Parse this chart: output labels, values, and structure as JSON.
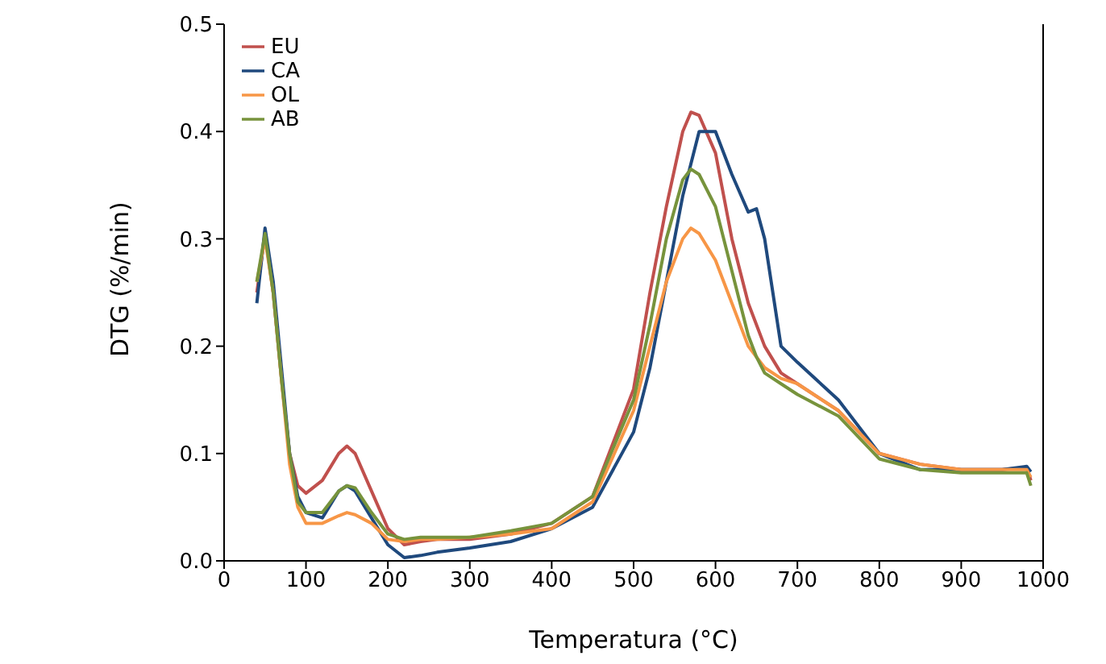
{
  "chart_data": {
    "type": "line",
    "xlabel": "Temperatura (°C)",
    "ylabel": "DTG (%/min)",
    "x": [
      40,
      50,
      60,
      70,
      80,
      90,
      100,
      120,
      140,
      150,
      160,
      180,
      200,
      220,
      240,
      260,
      300,
      350,
      400,
      450,
      500,
      520,
      540,
      560,
      570,
      580,
      600,
      620,
      640,
      650,
      660,
      680,
      700,
      750,
      800,
      850,
      900,
      950,
      980,
      985
    ],
    "series": [
      {
        "name": "EU",
        "color": "#c0504d",
        "values": [
          0.25,
          0.305,
          0.25,
          0.17,
          0.1,
          0.07,
          0.063,
          0.075,
          0.1,
          0.107,
          0.1,
          0.065,
          0.03,
          0.015,
          0.018,
          0.02,
          0.02,
          0.025,
          0.035,
          0.06,
          0.16,
          0.25,
          0.33,
          0.4,
          0.418,
          0.415,
          0.38,
          0.3,
          0.24,
          0.22,
          0.2,
          0.175,
          0.165,
          0.14,
          0.1,
          0.09,
          0.085,
          0.085,
          0.087,
          0.075
        ]
      },
      {
        "name": "CA",
        "color": "#1f497d",
        "values": [
          0.24,
          0.31,
          0.26,
          0.18,
          0.1,
          0.06,
          0.045,
          0.04,
          0.065,
          0.07,
          0.065,
          0.04,
          0.015,
          0.003,
          0.005,
          0.008,
          0.012,
          0.018,
          0.03,
          0.05,
          0.12,
          0.18,
          0.26,
          0.34,
          0.37,
          0.4,
          0.4,
          0.36,
          0.325,
          0.328,
          0.3,
          0.2,
          0.185,
          0.15,
          0.1,
          0.085,
          0.085,
          0.085,
          0.088,
          0.083
        ]
      },
      {
        "name": "OL",
        "color": "#f79646",
        "values": [
          0.26,
          0.3,
          0.25,
          0.17,
          0.09,
          0.05,
          0.035,
          0.035,
          0.042,
          0.045,
          0.043,
          0.035,
          0.02,
          0.018,
          0.02,
          0.02,
          0.022,
          0.025,
          0.03,
          0.055,
          0.14,
          0.2,
          0.26,
          0.3,
          0.31,
          0.305,
          0.28,
          0.24,
          0.2,
          0.19,
          0.18,
          0.17,
          0.165,
          0.14,
          0.1,
          0.09,
          0.085,
          0.085,
          0.085,
          0.078
        ]
      },
      {
        "name": "AB",
        "color": "#77933c",
        "values": [
          0.26,
          0.305,
          0.25,
          0.17,
          0.1,
          0.055,
          0.045,
          0.045,
          0.065,
          0.07,
          0.068,
          0.045,
          0.025,
          0.02,
          0.022,
          0.022,
          0.022,
          0.028,
          0.035,
          0.06,
          0.15,
          0.22,
          0.3,
          0.355,
          0.365,
          0.36,
          0.33,
          0.27,
          0.21,
          0.19,
          0.175,
          0.165,
          0.155,
          0.135,
          0.095,
          0.085,
          0.082,
          0.082,
          0.082,
          0.07
        ]
      }
    ],
    "xlim": [
      0,
      1000
    ],
    "xticks": [
      0,
      100,
      200,
      300,
      400,
      500,
      600,
      700,
      800,
      900,
      1000
    ],
    "ylim": [
      0,
      0.5
    ],
    "yticks": [
      {
        "value": 0,
        "label": "0.0"
      },
      {
        "value": 0.1,
        "label": "0.1"
      },
      {
        "value": 0.2,
        "label": "0.2"
      },
      {
        "value": 0.3,
        "label": "0.3"
      },
      {
        "value": 0.4,
        "label": "0.4"
      },
      {
        "value": 0.5,
        "label": "0.5"
      }
    ],
    "legend": "top left",
    "grid": false,
    "marker": "none",
    "line_style": "solid"
  }
}
